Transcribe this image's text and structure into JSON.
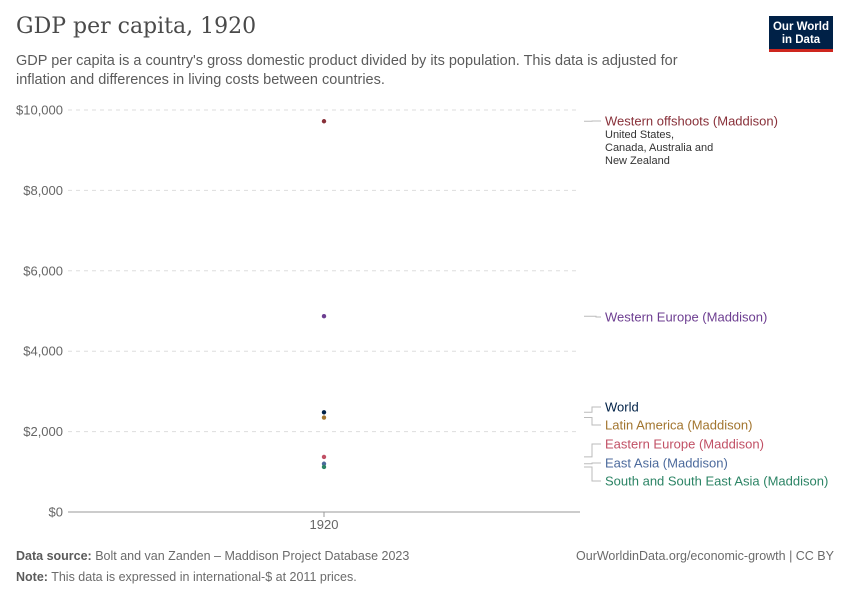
{
  "header": {
    "title": "GDP per capita, 1920",
    "subtitle": "GDP per capita is a country's gross domestic product divided by its population. This data is adjusted for inflation and differences in living costs between countries."
  },
  "logo": {
    "line1": "Our World",
    "line2": "in Data"
  },
  "footer": {
    "source_label": "Data source:",
    "source_text": "Bolt and van Zanden – Maddison Project Database 2023",
    "note_label": "Note:",
    "note_text": "This data is expressed in international-$ at 2011 prices.",
    "link": "OurWorldinData.org/economic-growth | CC BY"
  },
  "chart_data": {
    "type": "scatter",
    "title": "GDP per capita, 1920",
    "xlabel": "",
    "ylabel": "",
    "categories": [
      "1920"
    ],
    "ylim": [
      0,
      10000
    ],
    "yticks": [
      0,
      2000,
      4000,
      6000,
      8000,
      10000
    ],
    "ytick_labels": [
      "$0",
      "$2,000",
      "$4,000",
      "$6,000",
      "$8,000",
      "$10,000"
    ],
    "grid": true,
    "series": [
      {
        "name": "Western offshoots (Maddison)",
        "note": "United States, Canada, Australia and New Zealand",
        "values": [
          9720
        ],
        "color": "#883039"
      },
      {
        "name": "Western Europe (Maddison)",
        "note": "",
        "values": [
          4870
        ],
        "color": "#6d3e91"
      },
      {
        "name": "World",
        "note": "",
        "values": [
          2480
        ],
        "color": "#002147"
      },
      {
        "name": "Latin America (Maddison)",
        "note": "",
        "values": [
          2350
        ],
        "color": "#a2752f"
      },
      {
        "name": "Eastern Europe (Maddison)",
        "note": "",
        "values": [
          1370
        ],
        "color": "#c15065"
      },
      {
        "name": "East Asia (Maddison)",
        "note": "",
        "values": [
          1200
        ],
        "color": "#4c6a9c"
      },
      {
        "name": "South and South East Asia (Maddison)",
        "note": "",
        "values": [
          1120
        ],
        "color": "#2c8465"
      }
    ]
  }
}
